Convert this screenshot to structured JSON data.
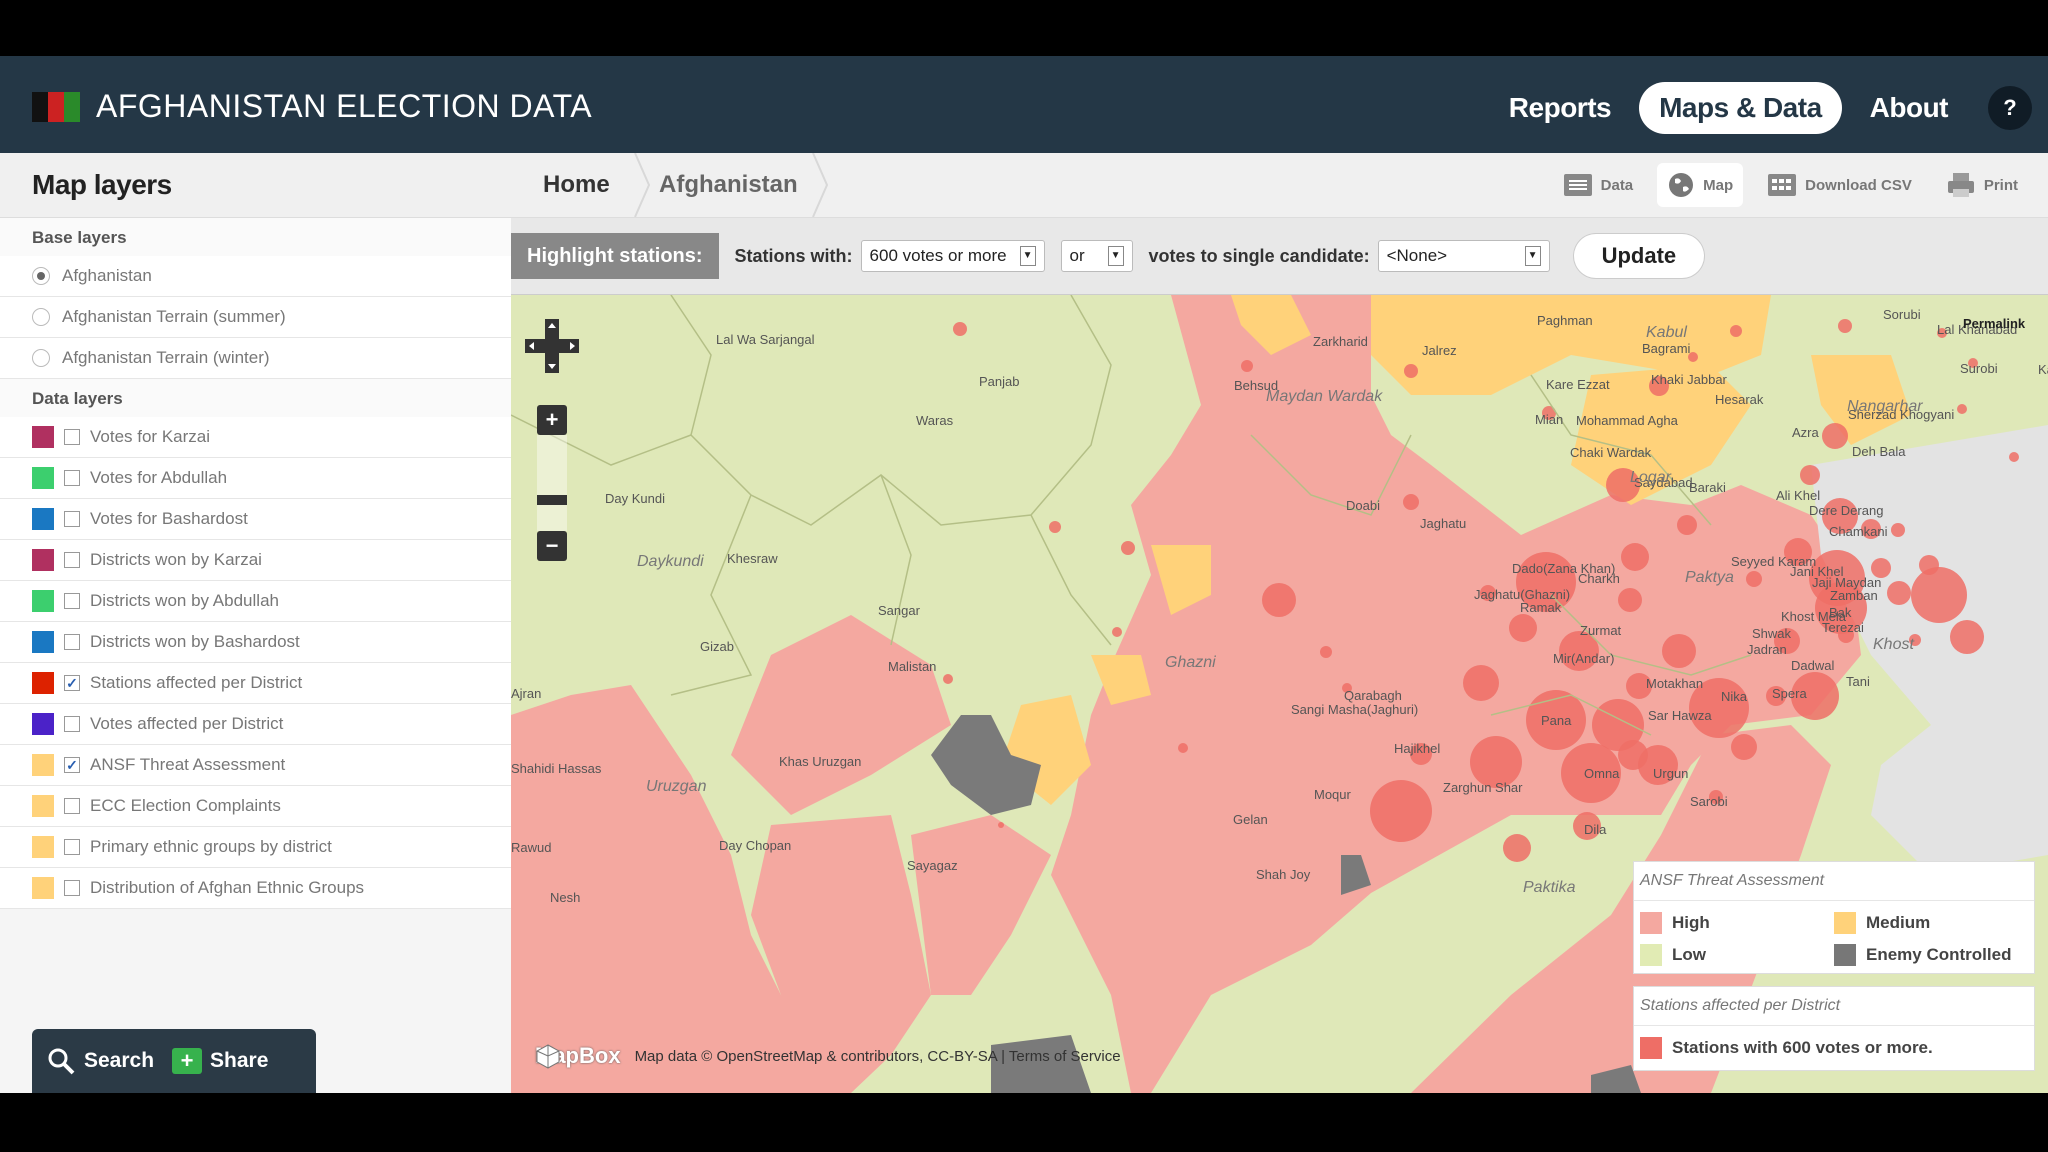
{
  "header": {
    "title": "AFGHANISTAN ELECTION DATA",
    "nav": [
      {
        "label": "Reports",
        "active": false
      },
      {
        "label": "Maps & Data",
        "active": true
      },
      {
        "label": "About",
        "active": false
      }
    ],
    "help_label": "?",
    "logo_colors": [
      "#000000",
      "#cc2200",
      "#2a8a2a"
    ]
  },
  "sidebar": {
    "title": "Map layers",
    "base_layers_heading": "Base layers",
    "base_layers": [
      {
        "label": "Afghanistan",
        "selected": true
      },
      {
        "label": "Afghanistan Terrain (summer)",
        "selected": false
      },
      {
        "label": "Afghanistan Terrain (winter)",
        "selected": false
      }
    ],
    "data_layers_heading": "Data layers",
    "data_layers": [
      {
        "label": "Votes for Karzai",
        "color": "#b03060",
        "checked": false
      },
      {
        "label": "Votes for Abdullah",
        "color": "#3ccf6e",
        "checked": false
      },
      {
        "label": "Votes for Bashardost",
        "color": "#1a78c2",
        "checked": false
      },
      {
        "label": "Districts won by Karzai",
        "color": "#b03060",
        "checked": false
      },
      {
        "label": "Districts won by Abdullah",
        "color": "#3ccf6e",
        "checked": false
      },
      {
        "label": "Districts won by Bashardost",
        "color": "#1a78c2",
        "checked": false
      },
      {
        "label": "Stations affected per District",
        "color": "#dd2200",
        "checked": true
      },
      {
        "label": "Votes affected per District",
        "color": "#4b22c8",
        "checked": false
      },
      {
        "label": "ANSF Threat Assessment",
        "color": "#ffd27a",
        "checked": true
      },
      {
        "label": "ECC Election Complaints",
        "color": "#ffd27a",
        "checked": false
      },
      {
        "label": "Primary ethnic groups by district",
        "color": "#ffd27a",
        "checked": false
      },
      {
        "label": "Distribution of Afghan Ethnic Groups",
        "color": "#ffd27a",
        "checked": false
      }
    ],
    "search_label": "Search",
    "share_label": "Share"
  },
  "breadcrumb": {
    "home": "Home",
    "current": "Afghanistan"
  },
  "tools": [
    {
      "label": "Data",
      "icon": "list-icon",
      "active": false
    },
    {
      "label": "Map",
      "icon": "globe-icon",
      "active": true
    },
    {
      "label": "Download CSV",
      "icon": "table-icon",
      "active": false
    },
    {
      "label": "Print",
      "icon": "printer-icon",
      "active": false
    }
  ],
  "highlight": {
    "label": "Highlight stations:",
    "stations_with_label": "Stations with:",
    "stations_with_value": "600 votes or more",
    "operator_value": "or",
    "candidate_label": "votes to single candidate:",
    "candidate_value": "<None>",
    "update_label": "Update"
  },
  "map": {
    "place_labels": [
      "Panjab",
      "Lal Wa Sarjangal",
      "Waras",
      "Behsud",
      "Maydan Wardak",
      "Zarkharid",
      "Jalrez",
      "Paghman",
      "Kabul",
      "Bagrami",
      "Sorubi",
      "Lal Khanabad",
      "Permalink",
      "Kama",
      "Surobi",
      "Khaki Jabbar",
      "Kare Ezzat",
      "Mohammad Agha",
      "Hesarak",
      "Nangarhar",
      "Sherzad Khogyani",
      "Deh Bala",
      "Azra",
      "Mian",
      "Chaki Wardak",
      "Saydabad",
      "Baraki",
      "Logar",
      "Ali Khel",
      "Dere Derang",
      "Chamkani",
      "Day Kundi",
      "Doabi",
      "Jaghatu",
      "Khesraw",
      "Daykundi",
      "Dado(Zana Khan)",
      "Charkh",
      "Seyyed Karam",
      "Paktya",
      "Jani Khel",
      "Jaji Maydan",
      "Sangar",
      "Jaghatu(Ghazni)",
      "Ramak",
      "Zurmat",
      "Shwak",
      "Khost Mela",
      "Zamban",
      "Bak",
      "Terezai",
      "Khost",
      "Jadran",
      "Dadwal",
      "Tani",
      "Gizab",
      "Malistan",
      "Ghazni",
      "Mir(Andar)",
      "Motakhan",
      "Qarabagh",
      "Sangi Masha(Jaghuri)",
      "Ajran",
      "Nika",
      "Sar Hawza",
      "Spera",
      "Khas Uruzgan",
      "Hajikhel",
      "Pana",
      "Shahidi Hassas",
      "Uruzgan",
      "Moqur",
      "Gelan",
      "Zarghun Shar",
      "Omna",
      "Urgun",
      "Sarobi",
      "Dila",
      "Day Chopan",
      "Sayagaz",
      "Shah Joy",
      "Rawud",
      "Nesh",
      "Paktika"
    ],
    "attribution_brand": "MapBox",
    "attribution_text": "Map data © OpenStreetMap & contributors, CC-BY-SA | Terms of Service",
    "zoom_in": "+",
    "zoom_out": "−"
  },
  "legend": {
    "threat_title": "ANSF Threat Assessment",
    "threat_items": [
      {
        "label": "High",
        "color": "#f4a8a0"
      },
      {
        "label": "Medium",
        "color": "#ffd27a"
      },
      {
        "label": "Low",
        "color": "#e1ebb4"
      },
      {
        "label": "Enemy Controlled",
        "color": "#777777"
      }
    ],
    "stations_title": "Stations affected per District",
    "stations_item": {
      "label": "Stations with 600 votes or more.",
      "color": "#ee6e66"
    }
  }
}
